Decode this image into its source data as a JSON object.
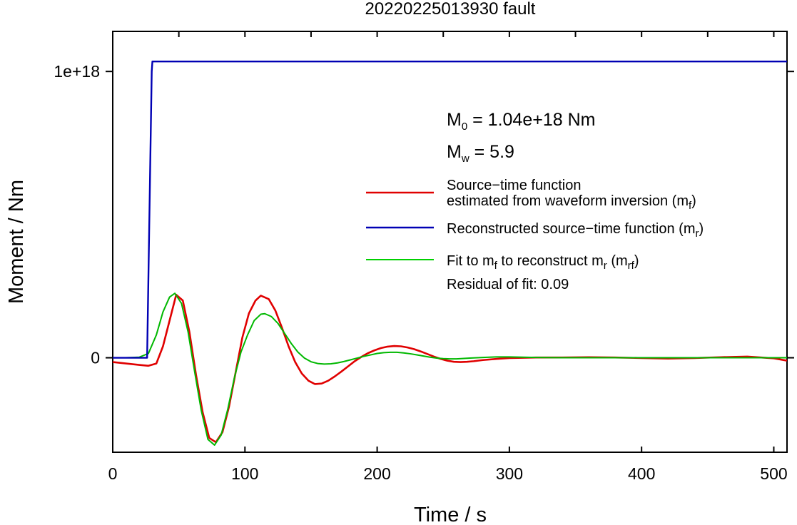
{
  "chart_data": {
    "type": "line",
    "title": "20220225013930 fault",
    "xlabel": "Time / s",
    "ylabel": "Moment / Nm",
    "xlim": [
      0,
      510
    ],
    "ylim": [
      -3.3e+17,
      1.14e+18
    ],
    "xticks": [
      0,
      100,
      200,
      300,
      400,
      500
    ],
    "xtick_labels": [
      "0",
      "100",
      "200",
      "300",
      "400",
      "500"
    ],
    "yticks": [
      0,
      1e+18
    ],
    "ytick_labels": [
      "0",
      "1e+18"
    ],
    "grid": false,
    "legend_position": "right",
    "annotations": {
      "m0_symbol": "M",
      "m0_sub": "0",
      "m0_rest": " = 1.04e+18 Nm",
      "mw_symbol": "M",
      "mw_sub": "w",
      "mw_rest": " = 5.9",
      "residual": "Residual of fit: 0.09"
    },
    "legend": {
      "red_line1": "Source−time function",
      "red_line2_a": "estimated from waveform inversion (m",
      "red_line2_sub": "f",
      "red_line2_b": ")",
      "blue_a": "Reconstructed source−time function (m",
      "blue_sub": "r",
      "blue_b": ")",
      "green_a": "Fit to m",
      "green_sub1": "f",
      "green_b": " to reconstruct m",
      "green_sub2": "r",
      "green_c": " (m",
      "green_sub3": "rf",
      "green_d": ")"
    },
    "series": [
      {
        "color": "#e00000",
        "x": [
          0,
          10,
          20,
          27,
          33,
          38,
          43,
          48,
          53,
          58,
          63,
          68,
          73,
          78,
          83,
          88,
          93,
          98,
          103,
          108,
          112,
          118,
          123,
          128,
          133,
          138,
          143,
          148,
          153,
          158,
          163,
          168,
          173,
          178,
          183,
          188,
          193,
          198,
          203,
          208,
          213,
          218,
          223,
          228,
          233,
          238,
          243,
          248,
          253,
          258,
          263,
          268,
          273,
          280,
          290,
          300,
          320,
          340,
          360,
          380,
          400,
          420,
          440,
          460,
          480,
          500,
          510
        ],
        "y": [
          -1.5e+16,
          -2e+16,
          -2.5e+16,
          -2.8e+16,
          -2e+16,
          4e+16,
          1.3e+17,
          2.2e+17,
          2e+17,
          9e+16,
          -6e+16,
          -1.9e+17,
          -2.8e+17,
          -2.95e+17,
          -2.6e+17,
          -1.7e+17,
          -5e+16,
          7e+16,
          1.55e+17,
          2e+17,
          2.17e+17,
          2.05e+17,
          1.65e+17,
          1.05e+17,
          4e+16,
          -1.5e+16,
          -5.5e+16,
          -8e+16,
          -9.2e+16,
          -9e+16,
          -8e+16,
          -6.5e+16,
          -4.8e+16,
          -3e+16,
          -1.2e+16,
          3000000000000000.0,
          1.6e+16,
          2.6e+16,
          3.4e+16,
          3.9e+16,
          4.1e+16,
          4e+16,
          3.6e+16,
          3e+16,
          2.2e+16,
          1.3e+16,
          4000000000000000.0,
          -4000000000000000.0,
          -1e+16,
          -1.4e+16,
          -1.5e+16,
          -1.4e+16,
          -1.2e+16,
          -8000000000000000.0,
          -4000000000000000.0,
          -1000000000000000.0,
          1000000000000000.0,
          1000000000000000.0,
          2000000000000000.0,
          1000000000000000.0,
          -1000000000000000.0,
          -3000000000000000.0,
          -1000000000000000.0,
          2000000000000000.0,
          4000000000000000.0,
          -2000000000000000.0,
          -1e+16
        ]
      },
      {
        "color": "#00b800",
        "x": [
          0,
          10,
          20,
          27,
          33,
          38,
          43,
          47,
          52,
          57,
          62,
          67,
          72,
          77,
          82,
          87,
          92,
          97,
          102,
          107,
          112,
          115,
          120,
          125,
          130,
          135,
          140,
          145,
          150,
          155,
          160,
          165,
          170,
          175,
          180,
          185,
          190,
          195,
          200,
          205,
          210,
          215,
          220,
          225,
          230,
          235,
          240,
          245,
          250,
          255,
          260,
          270,
          280,
          290,
          300,
          320,
          340,
          360,
          380,
          400,
          420,
          440,
          460,
          480,
          500,
          510
        ],
        "y": [
          0,
          0,
          2000000000000000.0,
          1.5e+16,
          8e+16,
          1.6e+17,
          2.12e+17,
          2.25e+17,
          1.9e+17,
          9e+16,
          -5e+16,
          -1.85e+17,
          -2.85e+17,
          -3.05e+17,
          -2.7e+17,
          -1.8e+17,
          -7e+16,
          2e+16,
          8e+16,
          1.3e+17,
          1.52e+17,
          1.54e+17,
          1.44e+17,
          1.2e+17,
          8.5e+16,
          5e+16,
          2e+16,
          -1000000000000000.0,
          -1.4e+16,
          -2e+16,
          -2.2e+16,
          -2.1e+16,
          -1.8e+16,
          -1.3e+16,
          -7000000000000000.0,
          -1000000000000000.0,
          5000000000000000.0,
          1e+16,
          1.5e+16,
          1.8e+16,
          1.9e+16,
          1.9e+16,
          1.7e+16,
          1.4e+16,
          1e+16,
          6000000000000000.0,
          2000000000000000.0,
          -1000000000000000.0,
          -3000000000000000.0,
          -4000000000000000.0,
          -4000000000000000.0,
          -1000000000000000.0,
          1000000000000000.0,
          3000000000000000.0,
          3000000000000000.0,
          1000000000000000.0,
          0,
          0,
          0,
          0,
          0,
          0,
          0,
          0,
          0,
          0
        ]
      },
      {
        "color": "#0000b4",
        "x": [
          0,
          26,
          29.5,
          30,
          510
        ],
        "y": [
          0,
          0,
          1e+18,
          1.035e+18,
          1.035e+18
        ]
      }
    ]
  }
}
